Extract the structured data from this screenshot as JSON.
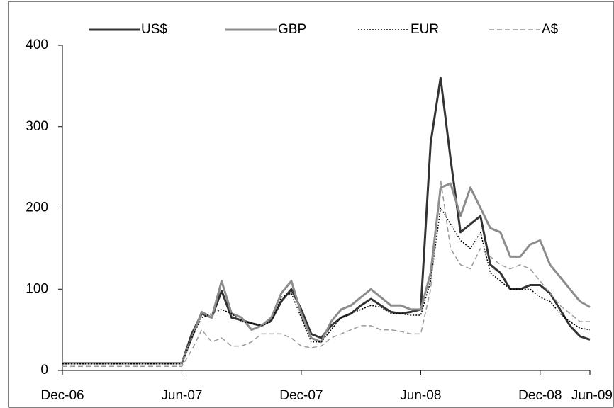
{
  "chart_data": {
    "type": "line",
    "x": [
      0,
      0.5,
      1,
      1.5,
      2,
      2.5,
      3,
      3.5,
      4,
      4.5,
      5,
      5.5,
      6,
      6.5,
      7,
      7.5,
      8,
      8.5,
      9,
      9.5,
      10,
      10.5,
      11,
      11.5,
      12,
      12.5,
      13,
      13.5,
      14,
      14.5,
      15,
      15.5,
      16,
      16.5,
      17,
      17.5,
      18,
      18.5,
      19,
      19.5,
      20,
      20.5,
      21,
      21.5,
      22,
      22.5,
      23,
      23.5,
      24,
      24.5,
      25,
      25.5,
      26,
      26.5
    ],
    "series": [
      {
        "name": "US$",
        "color": "#333333",
        "style": "solid",
        "values": [
          9,
          9,
          9,
          9,
          9,
          9,
          9,
          9,
          9,
          9,
          9,
          9,
          9,
          45,
          70,
          65,
          98,
          65,
          62,
          58,
          55,
          62,
          85,
          100,
          75,
          45,
          40,
          55,
          65,
          70,
          80,
          88,
          80,
          72,
          70,
          72,
          75,
          280,
          360,
          260,
          170,
          180,
          190,
          130,
          120,
          100,
          100,
          105,
          105,
          95,
          75,
          55,
          42,
          38
        ]
      },
      {
        "name": "GBP",
        "color": "#8c8c8c",
        "style": "solid",
        "values": [
          9,
          9,
          9,
          9,
          9,
          9,
          9,
          9,
          9,
          9,
          9,
          9,
          9,
          40,
          72,
          65,
          110,
          70,
          65,
          50,
          55,
          65,
          95,
          110,
          70,
          40,
          35,
          60,
          75,
          80,
          90,
          100,
          90,
          80,
          80,
          75,
          75,
          120,
          225,
          230,
          190,
          225,
          200,
          175,
          170,
          140,
          140,
          155,
          160,
          130,
          115,
          100,
          85,
          78
        ]
      },
      {
        "name": "EUR",
        "color": "#000000",
        "style": "dotted",
        "values": [
          8,
          8,
          8,
          8,
          8,
          8,
          8,
          8,
          8,
          8,
          8,
          8,
          8,
          40,
          65,
          70,
          75,
          70,
          60,
          58,
          55,
          60,
          90,
          95,
          65,
          35,
          35,
          50,
          65,
          70,
          75,
          80,
          78,
          70,
          70,
          68,
          68,
          110,
          200,
          180,
          160,
          150,
          170,
          120,
          110,
          100,
          100,
          100,
          90,
          85,
          70,
          60,
          52,
          50
        ]
      },
      {
        "name": "A$",
        "color": "#999999",
        "style": "dashed",
        "values": [
          5,
          5,
          5,
          5,
          5,
          5,
          5,
          5,
          5,
          5,
          5,
          5,
          5,
          25,
          50,
          35,
          40,
          30,
          30,
          35,
          45,
          45,
          45,
          40,
          30,
          28,
          30,
          40,
          45,
          50,
          55,
          55,
          50,
          50,
          48,
          45,
          45,
          100,
          235,
          150,
          130,
          125,
          150,
          140,
          130,
          125,
          130,
          125,
          110,
          95,
          80,
          70,
          60,
          60
        ]
      }
    ],
    "xlim": [
      0,
      26.5
    ],
    "xticks": [
      {
        "value": 0,
        "label": "Dec-06"
      },
      {
        "value": 6,
        "label": "Jun-07"
      },
      {
        "value": 12,
        "label": "Dec-07"
      },
      {
        "value": 18,
        "label": "Jun-08"
      },
      {
        "value": 24,
        "label": "Dec-08"
      },
      {
        "value": 26.5,
        "label": "Jun-09"
      }
    ],
    "ylim": [
      0,
      400
    ],
    "yticks": [
      0,
      100,
      200,
      300,
      400
    ],
    "grid": false,
    "legend": "top"
  }
}
